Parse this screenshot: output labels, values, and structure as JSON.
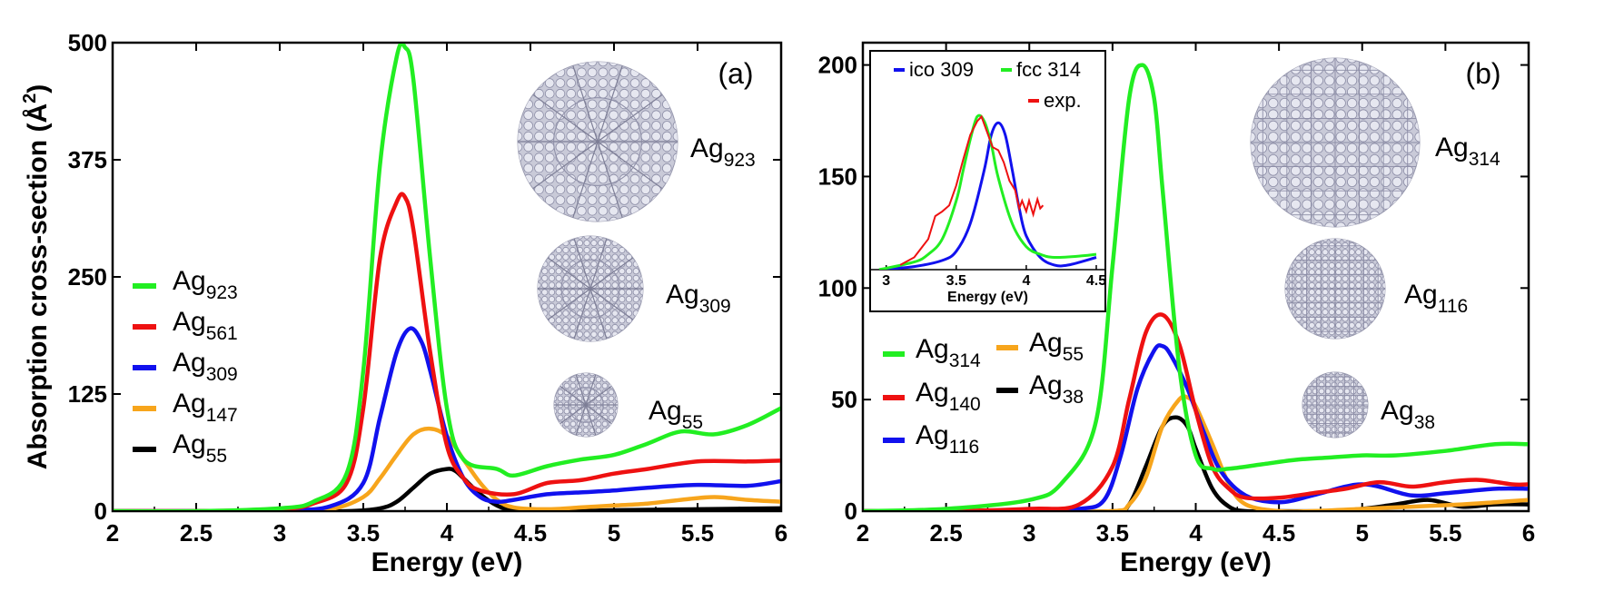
{
  "chart_data": [
    {
      "type": "line",
      "panel_label": "(a)",
      "xlabel": "Energy (eV)",
      "ylabel": "Absorption cross-section (Å²)",
      "ylabel_main": "Absorption cross-section (",
      "ylabel_unit": "Å",
      "ylabel_exp": "2",
      "ylabel_close": ")",
      "xlim": [
        2,
        6
      ],
      "ylim": [
        0,
        500
      ],
      "xticks": [
        2,
        2.5,
        3,
        3.5,
        4,
        4.5,
        5,
        5.5,
        6
      ],
      "xtick_labels": [
        "2",
        "2.5",
        "3",
        "3.5",
        "4",
        "4.5",
        "5",
        "5.5",
        "6"
      ],
      "yticks": [
        0,
        125,
        250,
        375,
        500
      ],
      "ytick_labels": [
        "0",
        "125",
        "250",
        "375",
        "500"
      ],
      "series": [
        {
          "name": "Ag923",
          "base": "Ag",
          "sub": "923",
          "color": "#22ee22",
          "x": [
            2.0,
            2.5,
            3.0,
            3.2,
            3.4,
            3.5,
            3.6,
            3.7,
            3.75,
            3.8,
            3.9,
            4.0,
            4.1,
            4.3,
            4.4,
            4.6,
            4.8,
            5.0,
            5.2,
            5.4,
            5.6,
            5.8,
            6.0
          ],
          "y": [
            0,
            0,
            3,
            10,
            40,
            150,
            370,
            485,
            495,
            460,
            270,
            110,
            55,
            45,
            38,
            48,
            55,
            60,
            72,
            85,
            82,
            92,
            110
          ]
        },
        {
          "name": "Ag561",
          "base": "Ag",
          "sub": "561",
          "color": "#ee1111",
          "x": [
            2.0,
            2.5,
            3.0,
            3.2,
            3.4,
            3.5,
            3.6,
            3.7,
            3.75,
            3.8,
            3.9,
            4.0,
            4.1,
            4.2,
            4.4,
            4.6,
            4.8,
            5.0,
            5.2,
            5.5,
            5.8,
            6.0
          ],
          "y": [
            0,
            0,
            2,
            8,
            30,
            110,
            270,
            330,
            335,
            300,
            170,
            70,
            35,
            22,
            18,
            30,
            33,
            40,
            45,
            53,
            53,
            54
          ]
        },
        {
          "name": "Ag309",
          "base": "Ag",
          "sub": "309",
          "color": "#1111ee",
          "x": [
            2.0,
            2.5,
            3.0,
            3.3,
            3.5,
            3.6,
            3.7,
            3.78,
            3.85,
            3.9,
            4.0,
            4.1,
            4.2,
            4.3,
            4.4,
            4.6,
            4.8,
            5.0,
            5.2,
            5.5,
            5.8,
            6.0
          ],
          "y": [
            0,
            0,
            1,
            5,
            30,
            100,
            170,
            195,
            180,
            150,
            80,
            35,
            15,
            10,
            12,
            18,
            20,
            22,
            25,
            28,
            27,
            32
          ]
        },
        {
          "name": "Ag147",
          "base": "Ag",
          "sub": "147",
          "color": "#f7a51c",
          "x": [
            2.0,
            2.5,
            3.0,
            3.3,
            3.5,
            3.6,
            3.7,
            3.8,
            3.9,
            4.0,
            4.1,
            4.2,
            4.3,
            4.4,
            4.6,
            4.8,
            5.0,
            5.2,
            5.4,
            5.6,
            5.8,
            6.0
          ],
          "y": [
            0,
            0,
            0,
            2,
            15,
            35,
            60,
            82,
            88,
            80,
            55,
            30,
            12,
            4,
            2,
            4,
            6,
            8,
            12,
            15,
            12,
            10
          ]
        },
        {
          "name": "Ag55",
          "base": "Ag",
          "sub": "55",
          "color": "#000000",
          "x": [
            2.0,
            2.5,
            3.0,
            3.4,
            3.6,
            3.7,
            3.8,
            3.9,
            4.0,
            4.05,
            4.1,
            4.2,
            4.3,
            4.4,
            4.6,
            4.8,
            5.0,
            5.5,
            6.0
          ],
          "y": [
            0,
            0,
            0,
            0,
            3,
            10,
            25,
            40,
            45,
            43,
            35,
            18,
            6,
            1,
            0,
            0,
            1,
            2,
            3
          ]
        }
      ],
      "cluster_labels": [
        {
          "base": "Ag",
          "sub": "923"
        },
        {
          "base": "Ag",
          "sub": "309"
        },
        {
          "base": "Ag",
          "sub": "55"
        }
      ]
    },
    {
      "type": "line",
      "panel_label": "(b)",
      "xlabel": "Energy (eV)",
      "xlim": [
        2,
        6
      ],
      "ylim": [
        0,
        210
      ],
      "xticks": [
        2,
        2.5,
        3,
        3.5,
        4,
        4.5,
        5,
        5.5,
        6
      ],
      "xtick_labels": [
        "2",
        "2.5",
        "3",
        "3.5",
        "4",
        "4.5",
        "5",
        "5.5",
        "6"
      ],
      "yticks": [
        0,
        50,
        100,
        150,
        200
      ],
      "ytick_labels": [
        "0",
        "50",
        "100",
        "150",
        "200"
      ],
      "series": [
        {
          "name": "Ag314",
          "base": "Ag",
          "sub": "314",
          "color": "#22ee22",
          "x": [
            2.0,
            2.5,
            3.0,
            3.2,
            3.4,
            3.5,
            3.6,
            3.68,
            3.75,
            3.8,
            3.9,
            4.0,
            4.1,
            4.2,
            4.4,
            4.6,
            4.8,
            5.0,
            5.2,
            5.5,
            5.8,
            6.0
          ],
          "y": [
            0,
            1,
            5,
            13,
            40,
            110,
            185,
            200,
            185,
            145,
            65,
            25,
            19,
            19,
            21,
            23,
            24,
            25,
            25,
            27,
            30,
            30
          ]
        },
        {
          "name": "Ag140",
          "base": "Ag",
          "sub": "140",
          "color": "#ee1111",
          "x": [
            2.0,
            2.5,
            3.0,
            3.3,
            3.5,
            3.6,
            3.7,
            3.8,
            3.9,
            4.0,
            4.1,
            4.2,
            4.3,
            4.5,
            4.7,
            4.9,
            5.1,
            5.3,
            5.5,
            5.7,
            5.9,
            6.0
          ],
          "y": [
            0,
            0,
            1,
            3,
            20,
            50,
            80,
            88,
            75,
            45,
            20,
            10,
            6,
            6,
            8,
            10,
            13,
            11,
            13,
            14,
            12,
            12
          ]
        },
        {
          "name": "Ag116",
          "base": "Ag",
          "sub": "116",
          "color": "#1111ee",
          "x": [
            2.0,
            2.5,
            3.0,
            3.3,
            3.45,
            3.55,
            3.65,
            3.75,
            3.8,
            3.85,
            3.95,
            4.05,
            4.15,
            4.3,
            4.5,
            4.7,
            4.9,
            5.0,
            5.1,
            5.3,
            5.5,
            5.8,
            6.0
          ],
          "y": [
            0,
            0,
            0,
            1,
            5,
            25,
            55,
            72,
            74,
            70,
            55,
            35,
            18,
            7,
            4,
            7,
            11,
            12,
            11,
            7,
            8,
            10,
            10
          ]
        },
        {
          "name": "Ag55",
          "base": "Ag",
          "sub": "55",
          "color": "#f7a51c",
          "x": [
            2.0,
            2.5,
            3.0,
            3.5,
            3.6,
            3.7,
            3.8,
            3.9,
            3.95,
            4.0,
            4.1,
            4.2,
            4.3,
            4.5,
            4.7,
            5.0,
            5.3,
            5.6,
            5.8,
            6.0
          ],
          "y": [
            0,
            0,
            0,
            0,
            3,
            15,
            38,
            50,
            51,
            47,
            30,
            12,
            3,
            0,
            0,
            1,
            2,
            3,
            4,
            5
          ]
        },
        {
          "name": "Ag38",
          "base": "Ag",
          "sub": "38",
          "color": "#000000",
          "x": [
            2.0,
            2.5,
            3.0,
            3.5,
            3.6,
            3.7,
            3.8,
            3.88,
            3.95,
            4.0,
            4.1,
            4.2,
            4.3,
            4.5,
            4.8,
            5.0,
            5.2,
            5.4,
            5.6,
            5.8,
            6.0
          ],
          "y": [
            0,
            0,
            0,
            0,
            3,
            20,
            38,
            42,
            38,
            28,
            10,
            2,
            0,
            0,
            0,
            1,
            3,
            5,
            2,
            3,
            3
          ]
        }
      ],
      "cluster_labels": [
        {
          "base": "Ag",
          "sub": "314"
        },
        {
          "base": "Ag",
          "sub": "116"
        },
        {
          "base": "Ag",
          "sub": "38"
        }
      ],
      "inset": {
        "type": "line",
        "xlabel": "Energy (eV)",
        "xlim": [
          2.95,
          4.5
        ],
        "ylim": [
          0,
          1.05
        ],
        "xticks": [
          3,
          3.5,
          4,
          4.5
        ],
        "xtick_labels": [
          "3",
          "3.5",
          "4",
          "4.5"
        ],
        "series": [
          {
            "name": "ico 309",
            "color": "#1111ee",
            "x": [
              2.95,
              3.2,
              3.4,
              3.5,
              3.6,
              3.7,
              3.75,
              3.8,
              3.85,
              3.9,
              3.95,
              4.0,
              4.1,
              4.2,
              4.3,
              4.5
            ],
            "y": [
              0,
              0.02,
              0.06,
              0.12,
              0.3,
              0.65,
              0.88,
              0.96,
              0.88,
              0.65,
              0.4,
              0.22,
              0.08,
              0.03,
              0.03,
              0.08
            ]
          },
          {
            "name": "fcc 314",
            "color": "#22ee22",
            "x": [
              2.95,
              3.2,
              3.3,
              3.4,
              3.5,
              3.55,
              3.6,
              3.65,
              3.7,
              3.75,
              3.8,
              3.9,
              4.0,
              4.1,
              4.2,
              4.4,
              4.5
            ],
            "y": [
              0,
              0.05,
              0.1,
              0.2,
              0.45,
              0.65,
              0.85,
              1.0,
              0.97,
              0.82,
              0.6,
              0.3,
              0.15,
              0.1,
              0.08,
              0.09,
              0.1
            ]
          },
          {
            "name": "exp.",
            "color": "#ee1111",
            "x": [
              3.1,
              3.2,
              3.3,
              3.35,
              3.4,
              3.45,
              3.5,
              3.55,
              3.6,
              3.65,
              3.68,
              3.72,
              3.76,
              3.8,
              3.84,
              3.88,
              3.92,
              3.95,
              3.97,
              4.0,
              4.02,
              4.05,
              4.08,
              4.1,
              4.12
            ],
            "y": [
              0.03,
              0.08,
              0.2,
              0.35,
              0.38,
              0.42,
              0.55,
              0.72,
              0.88,
              0.97,
              1.0,
              0.9,
              0.8,
              0.78,
              0.7,
              0.58,
              0.52,
              0.4,
              0.45,
              0.38,
              0.45,
              0.36,
              0.46,
              0.4,
              0.42
            ]
          }
        ]
      }
    }
  ]
}
